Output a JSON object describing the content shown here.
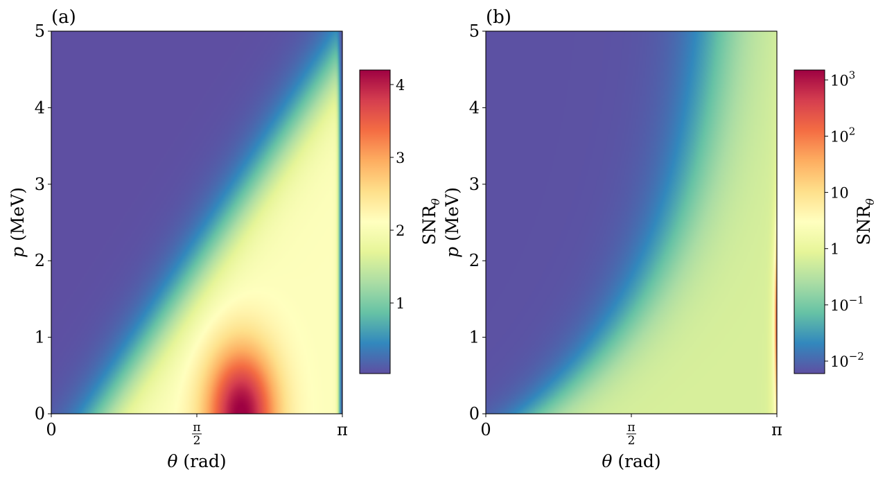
{
  "chart_data": [
    {
      "type": "heatmap",
      "panel_label": "(a)",
      "xlabel_var": "θ",
      "xlabel_unit": " (rad)",
      "ylabel_var": "p",
      "ylabel_unit": " (MeV)",
      "xlim": [
        0,
        3.1416
      ],
      "ylim": [
        0,
        5
      ],
      "x_ticks": [
        {
          "value": 0,
          "label": "0"
        },
        {
          "value": 1.5708,
          "num": "π",
          "den": "2"
        },
        {
          "value": 3.1416,
          "label": "π"
        }
      ],
      "y_ticks": [
        {
          "value": 0,
          "label": "0"
        },
        {
          "value": 1,
          "label": "1"
        },
        {
          "value": 2,
          "label": "2"
        },
        {
          "value": 3,
          "label": "3"
        },
        {
          "value": 4,
          "label": "4"
        },
        {
          "value": 5,
          "label": "5"
        }
      ],
      "colorbar": {
        "label_base": "SNR",
        "label_sub": "θ",
        "scale": "linear",
        "min": 0.03,
        "max": 4.2,
        "ticks": [
          {
            "value": 1,
            "base": "1",
            "exp": ""
          },
          {
            "value": 2,
            "base": "2",
            "exp": ""
          },
          {
            "value": 3,
            "base": "3",
            "exp": ""
          },
          {
            "value": 4,
            "base": "4",
            "exp": ""
          }
        ]
      },
      "colormap": "Spectral_r",
      "features": {
        "peak_theta": 2.05,
        "peak_p": 0.3,
        "peak_value": 4.2,
        "ridge_value": 2.0
      }
    },
    {
      "type": "heatmap",
      "panel_label": "(b)",
      "xlabel_var": "θ",
      "xlabel_unit": " (rad)",
      "ylabel_var": "p",
      "ylabel_unit": " (MeV)",
      "xlim": [
        0,
        3.1416
      ],
      "ylim": [
        0,
        5
      ],
      "x_ticks": [
        {
          "value": 0,
          "label": "0"
        },
        {
          "value": 1.5708,
          "num": "π",
          "den": "2"
        },
        {
          "value": 3.1416,
          "label": "π"
        }
      ],
      "y_ticks": [
        {
          "value": 0,
          "label": "0"
        },
        {
          "value": 1,
          "label": "1"
        },
        {
          "value": 2,
          "label": "2"
        },
        {
          "value": 3,
          "label": "3"
        },
        {
          "value": 4,
          "label": "4"
        },
        {
          "value": 5,
          "label": "5"
        }
      ],
      "colorbar": {
        "label_base": "SNR",
        "label_sub": "θ",
        "scale": "log",
        "min": 0.006,
        "max": 1500,
        "ticks": [
          {
            "value": 0.01,
            "base": "10",
            "exp": "−2"
          },
          {
            "value": 0.1,
            "base": "10",
            "exp": "−1"
          },
          {
            "value": 1,
            "base": "1",
            "exp": ""
          },
          {
            "value": 10,
            "base": "10",
            "exp": ""
          },
          {
            "value": 100,
            "base": "10",
            "exp": "2"
          },
          {
            "value": 1000,
            "base": "10",
            "exp": "3"
          }
        ]
      },
      "colormap": "Spectral_r",
      "features": {
        "peak_theta": 3.1416,
        "peak_p": 1.2,
        "peak_value": 1500
      }
    }
  ]
}
